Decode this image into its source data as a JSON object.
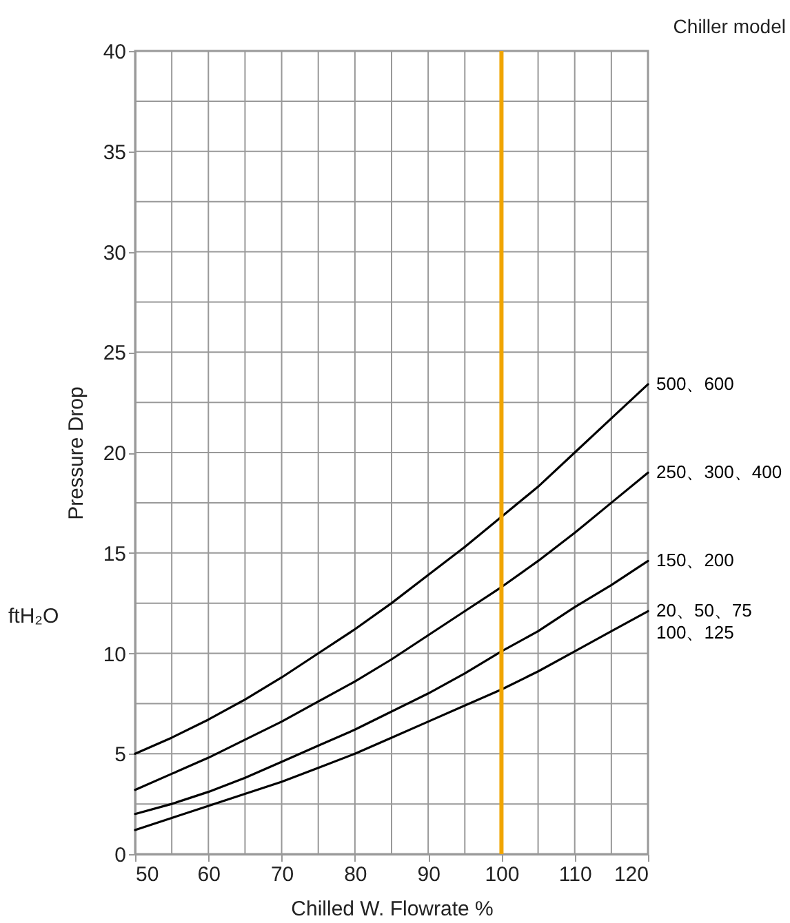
{
  "chart_data": {
    "type": "line",
    "xlabel": "Chilled W. Flowrate %",
    "ylabel": "Pressure Drop",
    "legend_title": "Chiller model",
    "annotations": [
      "ftH₂O"
    ],
    "x": [
      50,
      55,
      60,
      65,
      70,
      75,
      80,
      85,
      90,
      95,
      100,
      105,
      110,
      115,
      120
    ],
    "series": [
      {
        "name": "500、600",
        "color": "#000000",
        "values": [
          5.0,
          5.8,
          6.7,
          7.7,
          8.8,
          10.0,
          11.2,
          12.5,
          13.9,
          15.3,
          16.8,
          18.3,
          20.0,
          21.7,
          23.4
        ]
      },
      {
        "name": "250、300、400",
        "color": "#000000",
        "values": [
          3.2,
          4.0,
          4.8,
          5.7,
          6.6,
          7.6,
          8.6,
          9.7,
          10.9,
          12.1,
          13.3,
          14.6,
          16.0,
          17.5,
          19.0
        ]
      },
      {
        "name": "150、200",
        "color": "#000000",
        "values": [
          2.0,
          2.5,
          3.1,
          3.8,
          4.6,
          5.4,
          6.2,
          7.1,
          8.0,
          9.0,
          10.1,
          11.1,
          12.3,
          13.4,
          14.6
        ]
      },
      {
        "name": "20、50、75\n100、125",
        "color": "#000000",
        "values": [
          1.2,
          1.8,
          2.4,
          3.0,
          3.6,
          4.3,
          5.0,
          5.8,
          6.6,
          7.4,
          8.2,
          9.1,
          10.1,
          11.1,
          12.1
        ]
      }
    ],
    "xlim": [
      50,
      120
    ],
    "xticks": [
      50,
      {
        "value": 55,
        "label": null
      },
      60,
      {
        "value": 65,
        "label": null
      },
      70,
      {
        "value": 75,
        "label": null
      },
      80,
      {
        "value": 85,
        "label": null
      },
      90,
      {
        "value": 95,
        "label": null
      },
      100,
      {
        "value": 105,
        "label": null
      },
      110,
      {
        "value": 115,
        "label": null
      },
      120
    ],
    "ylim": [
      0,
      40
    ],
    "yticks": [
      0,
      {
        "value": 2.5,
        "label": null
      },
      5,
      {
        "value": 7.5,
        "label": null
      },
      10,
      {
        "value": 12.5,
        "label": null
      },
      15,
      {
        "value": 17.5,
        "label": null
      },
      20,
      {
        "value": 22.5,
        "label": null
      },
      25,
      {
        "value": 27.5,
        "label": null
      },
      30,
      {
        "value": 32.5,
        "label": null
      },
      35,
      {
        "value": 37.5,
        "label": null
      },
      40
    ],
    "ref_lines": [
      {
        "axis": "x",
        "value": 100,
        "color": "#f0a500"
      }
    ],
    "grid": true
  }
}
